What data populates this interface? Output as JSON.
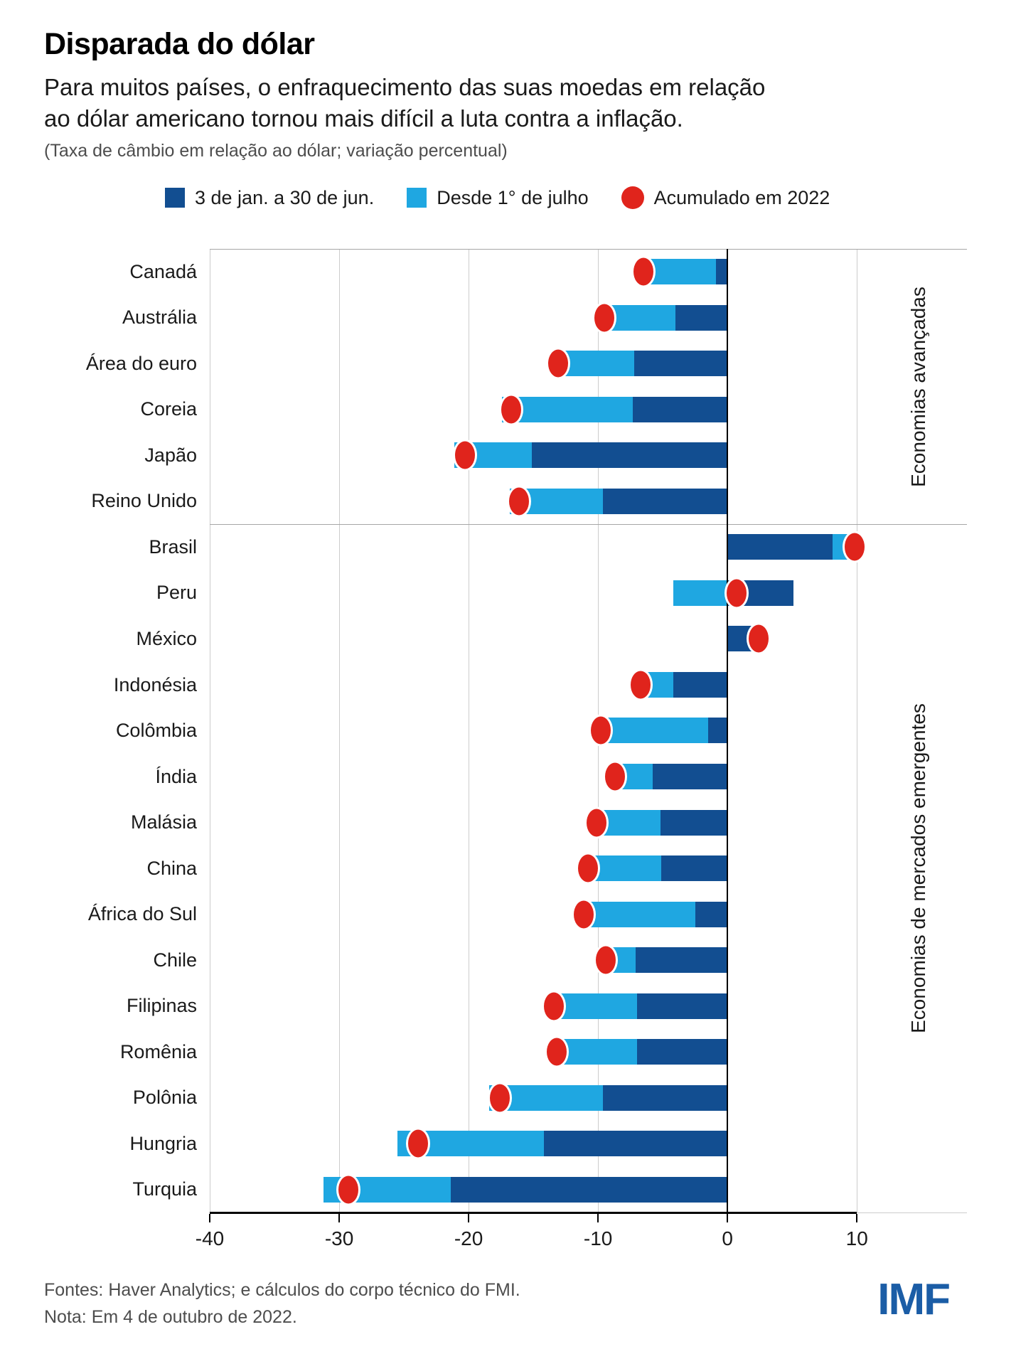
{
  "header": {
    "title": "Disparada do dólar",
    "subtitle": "Para muitos países, o enfraquecimento das suas moedas em relação ao dólar americano tornou mais difícil a luta contra a inflação.",
    "caption": "(Taxa de câmbio em relação ao dólar; variação percentual)"
  },
  "legend": {
    "items": [
      {
        "label": "3 de jan. a 30 de jun.",
        "swatch": "dark-blue-square"
      },
      {
        "label": "Desde 1° de julho",
        "swatch": "light-blue-square"
      },
      {
        "label": "Acumulado em 2022",
        "swatch": "red-dot"
      }
    ]
  },
  "colors": {
    "dark_blue": "#124E91",
    "light_blue": "#1FA7E1",
    "red": "#E0241C",
    "grid": "#CCCCCC",
    "section_line": "#A6A6A6",
    "imf_blue": "#1B5DA6"
  },
  "chart_data": {
    "type": "bar",
    "orientation": "horizontal",
    "title": "Disparada do dólar",
    "xlabel": "Taxa de câmbio em relação ao dólar; variação percentual",
    "xlim": [
      -40,
      18.5
    ],
    "x_ticks": [
      -40,
      -30,
      -20,
      -10,
      0,
      10
    ],
    "grid": true,
    "legend_position": "top",
    "series_names": [
      "3 de jan. a 30 de jun.",
      "Desde 1° de julho",
      "Acumulado em 2022"
    ],
    "groups": [
      {
        "label": "Economias avançadas",
        "countries": [
          {
            "name": "Canadá",
            "jan_jun": -0.9,
            "desde_julho": -5.5,
            "acumulado": -6.5
          },
          {
            "name": "Austrália",
            "jan_jun": -4.0,
            "desde_julho": -5.7,
            "acumulado": -9.5
          },
          {
            "name": "Área do euro",
            "jan_jun": -7.2,
            "desde_julho": -6.3,
            "acumulado": -13.1
          },
          {
            "name": "Coreia",
            "jan_jun": -7.3,
            "desde_julho": -10.1,
            "acumulado": -16.7
          },
          {
            "name": "Japão",
            "jan_jun": -15.1,
            "desde_julho": -6.0,
            "acumulado": -20.3
          },
          {
            "name": "Reino Unido",
            "jan_jun": -9.6,
            "desde_julho": -7.2,
            "acumulado": -16.1
          }
        ]
      },
      {
        "label": "Economias de mercados emergentes",
        "countries": [
          {
            "name": "Brasil",
            "jan_jun": 8.1,
            "desde_julho": 1.5,
            "acumulado": 9.8
          },
          {
            "name": "Peru",
            "jan_jun": 5.1,
            "desde_julho": -4.2,
            "acumulado": 0.7
          },
          {
            "name": "México",
            "jan_jun": 2.2,
            "desde_julho": 0.2,
            "acumulado": 2.4
          },
          {
            "name": "Indonésia",
            "jan_jun": -4.2,
            "desde_julho": -2.6,
            "acumulado": -6.7
          },
          {
            "name": "Colômbia",
            "jan_jun": -1.5,
            "desde_julho": -8.5,
            "acumulado": -9.8
          },
          {
            "name": "Índia",
            "jan_jun": -5.8,
            "desde_julho": -3.0,
            "acumulado": -8.7
          },
          {
            "name": "Malásia",
            "jan_jun": -5.2,
            "desde_julho": -5.0,
            "acumulado": -10.1
          },
          {
            "name": "China",
            "jan_jun": -5.1,
            "desde_julho": -5.8,
            "acumulado": -10.8
          },
          {
            "name": "África do Sul",
            "jan_jun": -2.5,
            "desde_julho": -8.7,
            "acumulado": -11.1
          },
          {
            "name": "Chile",
            "jan_jun": -7.1,
            "desde_julho": -2.5,
            "acumulado": -9.4
          },
          {
            "name": "Filipinas",
            "jan_jun": -7.0,
            "desde_julho": -6.9,
            "acumulado": -13.4
          },
          {
            "name": "Romênia",
            "jan_jun": -7.0,
            "desde_julho": -6.5,
            "acumulado": -13.2
          },
          {
            "name": "Polônia",
            "jan_jun": -9.6,
            "desde_julho": -8.8,
            "acumulado": -17.6
          },
          {
            "name": "Hungria",
            "jan_jun": -14.2,
            "desde_julho": -11.3,
            "acumulado": -23.9
          },
          {
            "name": "Turquia",
            "jan_jun": -21.4,
            "desde_julho": -9.8,
            "acumulado": -29.3
          }
        ]
      }
    ]
  },
  "footer": {
    "sources": "Fontes: Haver Analytics; e cálculos do corpo técnico do FMI.",
    "note": "Nota: Em 4 de outubro de 2022.",
    "logo": "IMF"
  }
}
